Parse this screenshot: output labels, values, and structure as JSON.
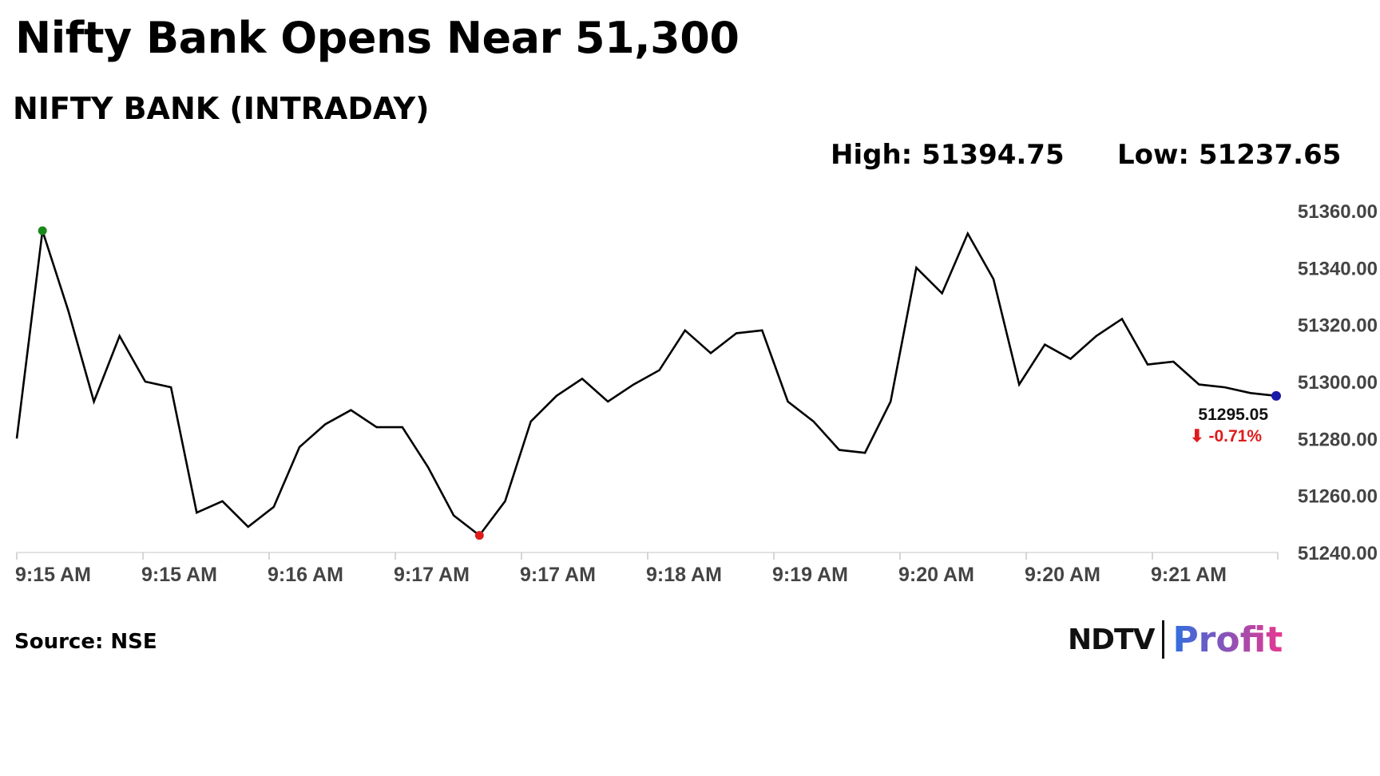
{
  "header": {
    "headline": "Nifty Bank Opens Near 51,300",
    "subtitle": "NIFTY BANK (INTRADAY)"
  },
  "stats": {
    "high_label": "High:",
    "high_value": "51394.75",
    "low_label": "Low:",
    "low_value": "51237.65"
  },
  "footer": {
    "source": "Source: NSE",
    "logo_ndtv": "NDTV",
    "logo_profit": "Profit"
  },
  "colors": {
    "line": "#000000",
    "high_marker": "#1a8a1a",
    "low_marker": "#e01b1b",
    "last_marker": "#1a1aa8",
    "change_negative": "#e01b1b"
  },
  "chart_data": {
    "type": "line",
    "series": [
      {
        "values": [
          51280,
          51353,
          51325,
          51293,
          51316,
          51300,
          51298,
          51254,
          51258,
          51249,
          51256,
          51277,
          51285,
          51290,
          51284,
          51284,
          51270,
          51253,
          51246,
          51258,
          51286,
          51295,
          51301,
          51293,
          51299,
          51304,
          51318,
          51310,
          51317,
          51318,
          51293,
          51286,
          51276,
          51275,
          51293,
          51340,
          51331,
          51352,
          51336,
          51299,
          51313,
          51308,
          51316,
          51322,
          51306,
          51307,
          51299,
          51298,
          51296,
          51295
        ]
      }
    ],
    "x_tick_labels": [
      "9:15 AM",
      "9:15 AM",
      "9:16 AM",
      "9:17 AM",
      "9:17 AM",
      "9:18 AM",
      "9:19 AM",
      "9:20 AM",
      "9:20 AM",
      "9:21 AM"
    ],
    "y_ticks": [
      51240,
      51260,
      51280,
      51300,
      51320,
      51340,
      51360
    ],
    "y_tick_labels": [
      "51240.00",
      "51260.00",
      "51280.00",
      "51300.00",
      "51320.00",
      "51340.00",
      "51360.00"
    ],
    "ylim": [
      51240,
      51360
    ],
    "grid": false,
    "y_axis_position": "right",
    "markers": {
      "high_index": 1,
      "low_index": 18,
      "last_index": 49
    },
    "last_label": {
      "value": "51295.05",
      "arrow": "⬇",
      "change": "-0.71%"
    }
  }
}
